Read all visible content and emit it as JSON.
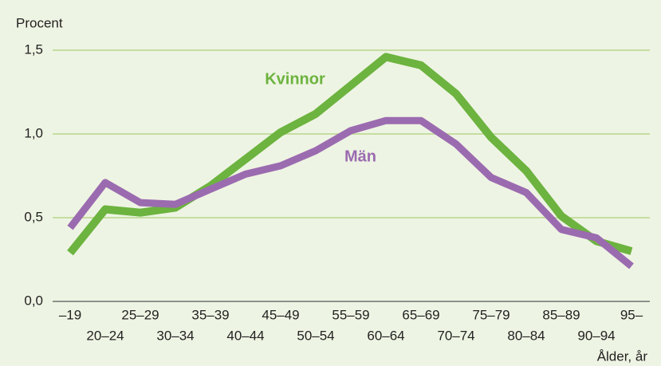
{
  "chart_data": {
    "type": "line",
    "y_label": "Procent",
    "x_label": "Ålder, år",
    "categories": [
      "–19",
      "20–24",
      "25–29",
      "30–34",
      "35–39",
      "40–44",
      "45–49",
      "50–54",
      "55–59",
      "60–64",
      "65–69",
      "70–74",
      "75–79",
      "80–84",
      "85–89",
      "90–94",
      "95–"
    ],
    "series": [
      {
        "name": "Kvinnor",
        "color": "#6cb33f",
        "values": [
          0.29,
          0.55,
          0.53,
          0.56,
          0.69,
          0.85,
          1.01,
          1.12,
          1.29,
          1.46,
          1.41,
          1.24,
          0.98,
          0.78,
          0.51,
          0.36,
          0.3
        ]
      },
      {
        "name": "Män",
        "color": "#9b6bb0",
        "values": [
          0.44,
          0.71,
          0.59,
          0.58,
          0.67,
          0.76,
          0.81,
          0.9,
          1.02,
          1.08,
          1.08,
          0.94,
          0.74,
          0.65,
          0.43,
          0.38,
          0.21
        ]
      }
    ],
    "ylim": [
      0,
      1.5
    ],
    "yticks": [
      {
        "value": 0,
        "label": "0,0"
      },
      {
        "value": 0.5,
        "label": "0,5"
      },
      {
        "value": 1.0,
        "label": "1,0"
      },
      {
        "value": 1.5,
        "label": "1,5"
      }
    ],
    "grid": true
  }
}
